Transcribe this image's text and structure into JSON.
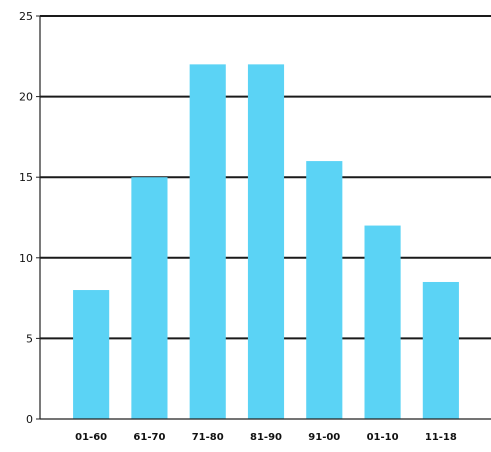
{
  "chart_data": {
    "type": "bar",
    "title": "",
    "xlabel": "",
    "ylabel": "",
    "categories": [
      "01-60",
      "61-70",
      "71-80",
      "81-90",
      "91-00",
      "01-10",
      "11-18"
    ],
    "values": [
      8,
      15,
      22,
      22,
      16,
      12,
      8.5
    ],
    "ylim": [
      0,
      25
    ],
    "yticks": [
      0,
      5,
      10,
      15,
      20,
      25
    ],
    "ytick_labels": [
      "0",
      "5",
      "10",
      "15",
      "20",
      "25"
    ],
    "grid": true,
    "legend": "none"
  },
  "colors": {
    "bar": "#5bd3f5",
    "grid": "#1a1a1a",
    "axis": "#222222",
    "text": "#111111",
    "background": "#ffffff"
  }
}
